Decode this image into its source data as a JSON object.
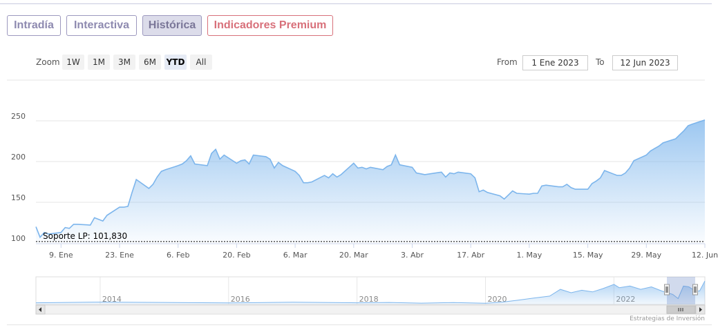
{
  "tabs": [
    {
      "label": "Intradía"
    },
    {
      "label": "Interactiva"
    },
    {
      "label": "Histórica",
      "active": true
    },
    {
      "label": "Indicadores Premium",
      "premium": true
    }
  ],
  "zoom": {
    "label": "Zoom",
    "buttons": [
      "1W",
      "1M",
      "3M",
      "6M",
      "YTD",
      "All"
    ],
    "selected": "YTD"
  },
  "range": {
    "from_label": "From",
    "from_value": "1 Ene 2023",
    "to_label": "To",
    "to_value": "12 Jun 2023"
  },
  "colors": {
    "series": "#7cb5ec",
    "tab_border": "#9c98be",
    "premium": "#d8707a"
  },
  "credits": "Estrategias de Inversión",
  "chart_data": {
    "type": "area",
    "title": "",
    "xlabel": "",
    "ylabel": "",
    "ylim": [
      100,
      250
    ],
    "yticks": [
      100,
      150,
      200,
      250
    ],
    "xlim": [
      "2023-01-03",
      "2023-06-12"
    ],
    "xticks": [
      {
        "date": "2023-01-09",
        "label": "9. Ene"
      },
      {
        "date": "2023-01-23",
        "label": "23. Ene"
      },
      {
        "date": "2023-02-06",
        "label": "6. Feb"
      },
      {
        "date": "2023-02-20",
        "label": "20. Feb"
      },
      {
        "date": "2023-03-06",
        "label": "6. Mar"
      },
      {
        "date": "2023-03-20",
        "label": "20. Mar"
      },
      {
        "date": "2023-04-03",
        "label": "3. Abr"
      },
      {
        "date": "2023-04-17",
        "label": "17. Abr"
      },
      {
        "date": "2023-05-01",
        "label": "1. May"
      },
      {
        "date": "2023-05-15",
        "label": "15. May"
      },
      {
        "date": "2023-05-29",
        "label": "29. May"
      },
      {
        "date": "2023-06-12",
        "label": "12. Jun"
      }
    ],
    "plot_line": {
      "value": 101.83,
      "label": "Soporte LP: 101,830"
    },
    "series": [
      {
        "points": [
          [
            "2023-01-03",
            120
          ],
          [
            "2023-01-04",
            107
          ],
          [
            "2023-01-05",
            113
          ],
          [
            "2023-01-06",
            111
          ],
          [
            "2023-01-09",
            113
          ],
          [
            "2023-01-10",
            119
          ],
          [
            "2023-01-11",
            118
          ],
          [
            "2023-01-12",
            123
          ],
          [
            "2023-01-13",
            123
          ],
          [
            "2023-01-16",
            122
          ],
          [
            "2023-01-17",
            131
          ],
          [
            "2023-01-18",
            129
          ],
          [
            "2023-01-19",
            127
          ],
          [
            "2023-01-20",
            134
          ],
          [
            "2023-01-23",
            144
          ],
          [
            "2023-01-24",
            144
          ],
          [
            "2023-01-25",
            145
          ],
          [
            "2023-01-26",
            162
          ],
          [
            "2023-01-27",
            178
          ],
          [
            "2023-01-30",
            167
          ],
          [
            "2023-01-31",
            172
          ],
          [
            "2023-02-01",
            181
          ],
          [
            "2023-02-02",
            188
          ],
          [
            "2023-02-03",
            190
          ],
          [
            "2023-02-06",
            195
          ],
          [
            "2023-02-07",
            197
          ],
          [
            "2023-02-08",
            201
          ],
          [
            "2023-02-09",
            207
          ],
          [
            "2023-02-10",
            197
          ],
          [
            "2023-02-13",
            195
          ],
          [
            "2023-02-14",
            210
          ],
          [
            "2023-02-15",
            215
          ],
          [
            "2023-02-16",
            203
          ],
          [
            "2023-02-17",
            208
          ],
          [
            "2023-02-20",
            198
          ],
          [
            "2023-02-21",
            201
          ],
          [
            "2023-02-22",
            202
          ],
          [
            "2023-02-23",
            197
          ],
          [
            "2023-02-24",
            208
          ],
          [
            "2023-02-27",
            206
          ],
          [
            "2023-02-28",
            203
          ],
          [
            "2023-03-01",
            192
          ],
          [
            "2023-03-02",
            199
          ],
          [
            "2023-03-03",
            195
          ],
          [
            "2023-03-06",
            188
          ],
          [
            "2023-03-07",
            183
          ],
          [
            "2023-03-08",
            174
          ],
          [
            "2023-03-09",
            174
          ],
          [
            "2023-03-10",
            175
          ],
          [
            "2023-03-13",
            183
          ],
          [
            "2023-03-14",
            180
          ],
          [
            "2023-03-15",
            185
          ],
          [
            "2023-03-16",
            181
          ],
          [
            "2023-03-17",
            184
          ],
          [
            "2023-03-20",
            198
          ],
          [
            "2023-03-21",
            192
          ],
          [
            "2023-03-22",
            193
          ],
          [
            "2023-03-23",
            191
          ],
          [
            "2023-03-24",
            193
          ],
          [
            "2023-03-27",
            190
          ],
          [
            "2023-03-28",
            194
          ],
          [
            "2023-03-29",
            196
          ],
          [
            "2023-03-30",
            208
          ],
          [
            "2023-03-31",
            196
          ],
          [
            "2023-04-03",
            193
          ],
          [
            "2023-04-04",
            186
          ],
          [
            "2023-04-05",
            185
          ],
          [
            "2023-04-06",
            184
          ],
          [
            "2023-04-10",
            187
          ],
          [
            "2023-04-11",
            181
          ],
          [
            "2023-04-12",
            186
          ],
          [
            "2023-04-13",
            185
          ],
          [
            "2023-04-14",
            187
          ],
          [
            "2023-04-17",
            185
          ],
          [
            "2023-04-18",
            180
          ],
          [
            "2023-04-19",
            163
          ],
          [
            "2023-04-20",
            165
          ],
          [
            "2023-04-21",
            162
          ],
          [
            "2023-04-24",
            158
          ],
          [
            "2023-04-25",
            154
          ],
          [
            "2023-04-26",
            159
          ],
          [
            "2023-04-27",
            164
          ],
          [
            "2023-04-28",
            161
          ],
          [
            "2023-05-01",
            160
          ],
          [
            "2023-05-02",
            161
          ],
          [
            "2023-05-03",
            161
          ],
          [
            "2023-05-04",
            170
          ],
          [
            "2023-05-05",
            171
          ],
          [
            "2023-05-08",
            169
          ],
          [
            "2023-05-09",
            169
          ],
          [
            "2023-05-10",
            172
          ],
          [
            "2023-05-11",
            168
          ],
          [
            "2023-05-12",
            166
          ],
          [
            "2023-05-15",
            166
          ],
          [
            "2023-05-16",
            173
          ],
          [
            "2023-05-17",
            176
          ],
          [
            "2023-05-18",
            180
          ],
          [
            "2023-05-19",
            189
          ],
          [
            "2023-05-22",
            183
          ],
          [
            "2023-05-23",
            183
          ],
          [
            "2023-05-24",
            186
          ],
          [
            "2023-05-25",
            192
          ],
          [
            "2023-05-26",
            201
          ],
          [
            "2023-05-29",
            208
          ],
          [
            "2023-05-30",
            213
          ],
          [
            "2023-05-31",
            216
          ],
          [
            "2023-06-01",
            219
          ],
          [
            "2023-06-02",
            223
          ],
          [
            "2023-06-05",
            228
          ],
          [
            "2023-06-06",
            233
          ],
          [
            "2023-06-07",
            238
          ],
          [
            "2023-06-08",
            244
          ],
          [
            "2023-06-09",
            246
          ],
          [
            "2023-06-12",
            251
          ]
        ]
      }
    ],
    "navigator": {
      "xticks": [
        "2014",
        "2016",
        "2018",
        "2020",
        "2022"
      ],
      "points": [
        [
          "2013-01",
          100
        ],
        [
          "2014-01",
          104
        ],
        [
          "2015-01",
          102
        ],
        [
          "2016-01",
          99
        ],
        [
          "2017-01",
          103
        ],
        [
          "2018-01",
          100
        ],
        [
          "2018-07",
          102
        ],
        [
          "2019-01",
          98
        ],
        [
          "2019-07",
          101
        ],
        [
          "2020-01",
          97
        ],
        [
          "2020-04",
          103
        ],
        [
          "2020-07",
          115
        ],
        [
          "2020-10",
          128
        ],
        [
          "2021-01",
          140
        ],
        [
          "2021-03",
          180
        ],
        [
          "2021-05",
          160
        ],
        [
          "2021-07",
          175
        ],
        [
          "2021-09",
          165
        ],
        [
          "2021-11",
          185
        ],
        [
          "2022-01",
          210
        ],
        [
          "2022-02",
          190
        ],
        [
          "2022-04",
          200
        ],
        [
          "2022-06",
          180
        ],
        [
          "2022-08",
          195
        ],
        [
          "2022-10",
          170
        ],
        [
          "2022-12",
          150
        ],
        [
          "2023-01",
          125
        ],
        [
          "2023-02",
          200
        ],
        [
          "2023-03",
          195
        ],
        [
          "2023-04",
          175
        ],
        [
          "2023-05",
          170
        ],
        [
          "2023-06",
          230
        ]
      ],
      "selected_range": [
        "2023-01-03",
        "2023-06-12"
      ]
    }
  }
}
